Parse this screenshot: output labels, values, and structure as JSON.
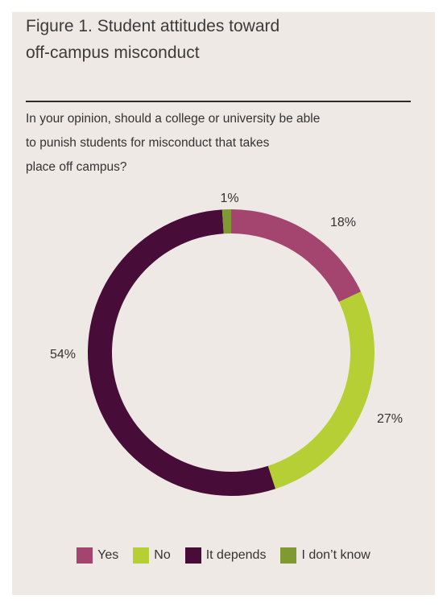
{
  "figure_title": "Figure 1. Student attitudes toward off-campus misconduct",
  "question": "In your opinion, should a college or university be able to punish students for misconduct that takes place off campus?",
  "chart_data": {
    "type": "pie",
    "variant": "donut",
    "title": "Figure 1. Student attitudes toward off-campus misconduct",
    "subtitle": "In your opinion, should a college or university be able to punish students for misconduct that takes place off campus?",
    "categories": [
      "Yes",
      "No",
      "It depends",
      "I don’t know"
    ],
    "values": [
      18,
      27,
      54,
      1
    ],
    "labels": [
      "18%",
      "27%",
      "54%",
      "1%"
    ],
    "colors": [
      "#a3456f",
      "#b5cf34",
      "#470c38",
      "#7f9a32"
    ],
    "legend_position": "bottom"
  }
}
